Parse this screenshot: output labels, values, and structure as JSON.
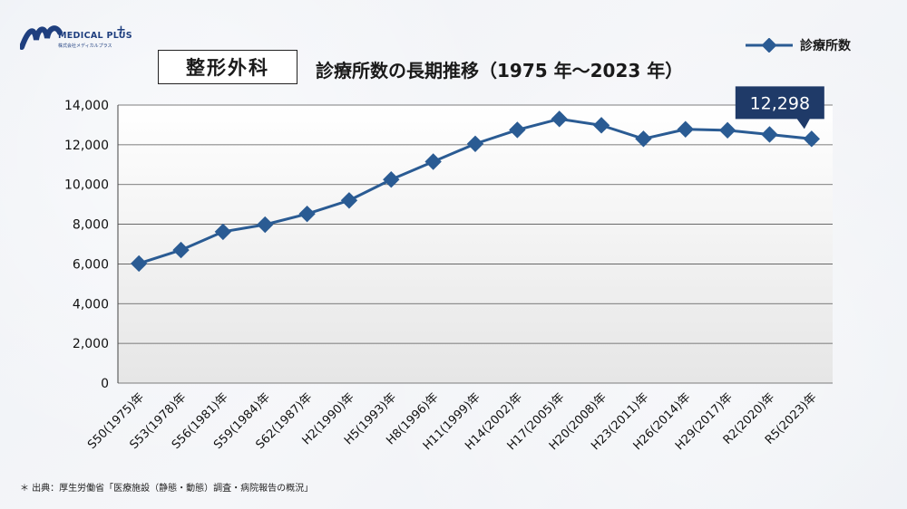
{
  "brand": {
    "name": "MEDICAL PLUS",
    "plus": "+",
    "sub": "株式会社メディカルプラス"
  },
  "header": {
    "specialty": "整形外科",
    "title": "診療所数の長期推移（1975 年～2023 年）"
  },
  "legend": {
    "label": "診療所数"
  },
  "callout": {
    "text": "12,298"
  },
  "footer": {
    "source": "＊ 出典：厚生労働省「医療施設（静態・動態）調査・病院報告の概況」"
  },
  "colors": {
    "line": "#2a5b93",
    "callout_bg": "#1f3a68",
    "plot_bg_top": "#ffffff",
    "plot_bg_bottom": "#e8e8e8",
    "grid": "#555555"
  },
  "chart_data": {
    "type": "line",
    "categories": [
      "S50(1975)年",
      "S53(1978)年",
      "S56(1981)年",
      "S59(1984)年",
      "S62(1987)年",
      "H2(1990)年",
      "H5(1993)年",
      "H8(1996)年",
      "H11(1999)年",
      "H14(2002)年",
      "H17(2005)年",
      "H20(2008)年",
      "H23(2011)年",
      "H26(2014)年",
      "H29(2017)年",
      "R2(2020)年",
      "R5(2023)年"
    ],
    "series": [
      {
        "name": "診療所数",
        "values": [
          6020,
          6700,
          7620,
          7980,
          8520,
          9200,
          10250,
          11150,
          12050,
          12750,
          13300,
          12980,
          12300,
          12780,
          12730,
          12520,
          12298
        ]
      }
    ],
    "ylim": [
      0,
      14000
    ],
    "yticks": [
      0,
      2000,
      4000,
      6000,
      8000,
      10000,
      12000,
      14000
    ],
    "ytick_labels": [
      "0",
      "2,000",
      "4,000",
      "6,000",
      "8,000",
      "10,000",
      "12,000",
      "14,000"
    ],
    "title": "診療所数の長期推移（1975 年～2023 年）",
    "xlabel": "",
    "ylabel": "",
    "grid": true,
    "legend_position": "top-right",
    "annotation": {
      "category_index": 16,
      "text": "12,298"
    }
  }
}
